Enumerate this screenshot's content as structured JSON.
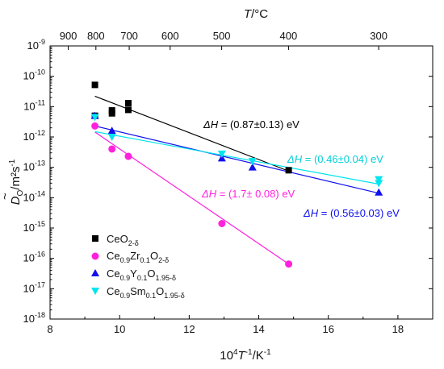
{
  "chart_data": {
    "type": "scatter",
    "x_axis": {
      "label_prefix": "10",
      "label_sup": "4",
      "label_T": "T",
      "label_sup2": "-1",
      "label_suffix": "/K",
      "label_sup3": "-1",
      "range": [
        8,
        19
      ],
      "ticks": [
        8,
        10,
        12,
        14,
        16,
        18
      ]
    },
    "top_axis": {
      "label_T": "T",
      "label_unit": "/°C",
      "ticks": [
        900,
        800,
        700,
        600,
        500,
        400,
        300
      ]
    },
    "y_axis": {
      "label_sym": "D",
      "label_tilde": "~",
      "label_sub": "O",
      "label_unit": "/m²s",
      "label_sup": "-1",
      "scale": "log",
      "range_exp": [
        -18,
        -9
      ],
      "tick_base": "10",
      "tick_exps": [
        "-18",
        "-17",
        "-16",
        "-15",
        "-14",
        "-13",
        "-12",
        "-11",
        "-10",
        "-9"
      ]
    },
    "series": [
      {
        "name_main": "CeO",
        "name_sub": "2-δ",
        "color": "#000000",
        "marker": "square",
        "points": [
          [
            9.29,
            5.2e-11
          ],
          [
            9.29,
            5e-12
          ],
          [
            9.78,
            7.5e-12
          ],
          [
            9.78,
            6e-12
          ],
          [
            10.25,
            1.3e-11
          ],
          [
            10.25,
            7.8e-12
          ],
          [
            14.86,
            8e-14
          ]
        ],
        "fit": [
          [
            9.29,
            2.2e-11
          ],
          [
            14.86,
            7.5e-14
          ]
        ]
      },
      {
        "name_main": "Ce",
        "name_sub1": "0.9",
        "name_mid": "Zr",
        "name_sub2": "0.1",
        "name_main2": "O",
        "name_sub3": "2-δ",
        "color": "#ff22dd",
        "marker": "circle",
        "points": [
          [
            9.29,
            2.3e-12
          ],
          [
            9.78,
            4e-13
          ],
          [
            10.25,
            2.3e-13
          ],
          [
            12.94,
            1.4e-15
          ],
          [
            14.86,
            6.5e-17
          ]
        ],
        "fit": [
          [
            9.29,
            1.45e-12
          ],
          [
            14.86,
            6.5e-17
          ]
        ]
      },
      {
        "name_main": "Ce",
        "name_sub1": "0.9",
        "name_mid": "Y",
        "name_sub2": "0.1",
        "name_main2": "O",
        "name_sub3": "1.95-δ",
        "color": "#1010ee",
        "marker": "triangle-up",
        "points": [
          [
            9.29,
            5e-12
          ],
          [
            9.78,
            1.6e-12
          ],
          [
            12.94,
            2e-13
          ],
          [
            13.82,
            1e-13
          ],
          [
            17.45,
            1.5e-14
          ]
        ],
        "fit": [
          [
            9.29,
            2.3e-12
          ],
          [
            17.45,
            1.4e-14
          ]
        ]
      },
      {
        "name_main": "Ce",
        "name_sub1": "0.9",
        "name_mid": "Sm",
        "name_sub2": "0.1",
        "name_main2": "O",
        "name_sub3": "1.95-δ",
        "color": "#00e5ee",
        "marker": "triangle-down",
        "points": [
          [
            9.29,
            4.5e-12
          ],
          [
            9.78,
            1e-12
          ],
          [
            12.94,
            2.8e-13
          ],
          [
            13.82,
            1.6e-13
          ],
          [
            17.45,
            4e-14
          ],
          [
            17.45,
            3e-14
          ]
        ],
        "fit": [
          [
            9.29,
            1.5e-12
          ],
          [
            17.45,
            2.8e-14
          ]
        ]
      }
    ],
    "annotations": [
      {
        "sym": "ΔH",
        "text": " = (0.87±0.13) eV",
        "color": "#000000"
      },
      {
        "sym": "ΔH",
        "text": " = (0.46±0.04) eV",
        "color": "#00d0d8"
      },
      {
        "sym": "ΔH",
        "text": " = (1.7± 0.08) eV",
        "color": "#ff22dd"
      },
      {
        "sym": "ΔH",
        "text": " = (0.56±0.03) eV",
        "color": "#1010ee"
      }
    ]
  }
}
